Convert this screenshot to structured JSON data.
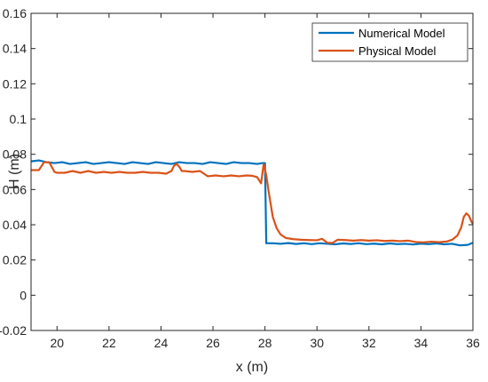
{
  "chart_data": {
    "type": "line",
    "title": "",
    "xlabel": "x (m)",
    "ylabel": "H (m)",
    "xlim": [
      19,
      36
    ],
    "ylim": [
      -0.02,
      0.16
    ],
    "xticks": [
      20,
      22,
      24,
      26,
      28,
      30,
      32,
      34,
      36
    ],
    "yticks": [
      -0.02,
      0,
      0.02,
      0.04,
      0.06,
      0.08,
      0.1,
      0.12,
      0.14,
      0.16
    ],
    "xtick_labels": [
      "20",
      "22",
      "24",
      "26",
      "28",
      "30",
      "32",
      "34",
      "36"
    ],
    "ytick_labels": [
      "-0.02",
      "0",
      "0.02",
      "0.04",
      "0.06",
      "0.08",
      "0.1",
      "0.12",
      "0.14",
      "0.16"
    ],
    "grid": false,
    "legend_position": "top-right",
    "series": [
      {
        "name": "Numerical Model",
        "color": "#0072BD",
        "x": [
          19.0,
          19.3,
          19.6,
          19.9,
          20.2,
          20.5,
          20.8,
          21.1,
          21.4,
          21.7,
          22.0,
          22.3,
          22.6,
          22.9,
          23.2,
          23.5,
          23.8,
          24.1,
          24.4,
          24.7,
          25.0,
          25.3,
          25.6,
          25.9,
          26.2,
          26.5,
          26.8,
          27.1,
          27.4,
          27.7,
          27.9,
          28.0,
          28.05,
          28.3,
          28.6,
          28.9,
          29.2,
          29.5,
          29.8,
          30.1,
          30.4,
          30.7,
          31.0,
          31.3,
          31.6,
          31.9,
          32.2,
          32.5,
          32.8,
          33.1,
          33.4,
          33.7,
          34.0,
          34.3,
          34.6,
          34.9,
          35.2,
          35.5,
          35.8,
          36.0
        ],
        "y": [
          0.076,
          0.0765,
          0.0755,
          0.075,
          0.0755,
          0.0745,
          0.075,
          0.0755,
          0.0745,
          0.075,
          0.0755,
          0.075,
          0.0745,
          0.0755,
          0.075,
          0.0745,
          0.0755,
          0.075,
          0.0745,
          0.0755,
          0.075,
          0.075,
          0.0745,
          0.0755,
          0.075,
          0.0745,
          0.0755,
          0.075,
          0.075,
          0.0745,
          0.075,
          0.075,
          0.0295,
          0.0295,
          0.0292,
          0.0296,
          0.0291,
          0.0295,
          0.029,
          0.0295,
          0.0292,
          0.0289,
          0.0294,
          0.0291,
          0.0295,
          0.029,
          0.0293,
          0.0289,
          0.0294,
          0.029,
          0.0292,
          0.0288,
          0.0293,
          0.029,
          0.0294,
          0.0289,
          0.0292,
          0.0283,
          0.0286,
          0.0298
        ]
      },
      {
        "name": "Physical Model",
        "color": "#D95319",
        "x": [
          19.0,
          19.3,
          19.5,
          19.7,
          19.9,
          20.0,
          20.3,
          20.6,
          20.9,
          21.2,
          21.5,
          21.8,
          22.1,
          22.4,
          22.7,
          23.0,
          23.3,
          23.6,
          23.9,
          24.2,
          24.4,
          24.5,
          24.6,
          24.7,
          24.8,
          24.9,
          25.2,
          25.5,
          25.8,
          26.1,
          26.4,
          26.7,
          27.0,
          27.3,
          27.5,
          27.7,
          27.85,
          27.95,
          28.05,
          28.15,
          28.3,
          28.45,
          28.6,
          28.8,
          29.1,
          29.4,
          29.7,
          30.0,
          30.2,
          30.4,
          30.6,
          30.8,
          31.1,
          31.4,
          31.7,
          32.0,
          32.3,
          32.6,
          32.9,
          33.2,
          33.5,
          33.8,
          34.1,
          34.4,
          34.7,
          35.0,
          35.2,
          35.4,
          35.55,
          35.65,
          35.75,
          35.85,
          35.95,
          36.0
        ],
        "y": [
          0.071,
          0.071,
          0.0755,
          0.0755,
          0.07,
          0.0695,
          0.0695,
          0.0705,
          0.0695,
          0.0705,
          0.0695,
          0.07,
          0.0695,
          0.07,
          0.0695,
          0.0695,
          0.07,
          0.0695,
          0.0695,
          0.069,
          0.0705,
          0.0735,
          0.0745,
          0.073,
          0.0705,
          0.0705,
          0.07,
          0.0705,
          0.0675,
          0.068,
          0.0675,
          0.068,
          0.0675,
          0.068,
          0.0678,
          0.067,
          0.0635,
          0.0745,
          0.068,
          0.058,
          0.0445,
          0.038,
          0.0345,
          0.0325,
          0.0318,
          0.0315,
          0.0313,
          0.0312,
          0.032,
          0.0298,
          0.0297,
          0.0315,
          0.0313,
          0.031,
          0.0313,
          0.031,
          0.0312,
          0.0308,
          0.031,
          0.0307,
          0.031,
          0.0302,
          0.03,
          0.0304,
          0.0301,
          0.0305,
          0.0315,
          0.0338,
          0.0385,
          0.0445,
          0.0465,
          0.045,
          0.0415,
          0.0405
        ]
      }
    ]
  }
}
